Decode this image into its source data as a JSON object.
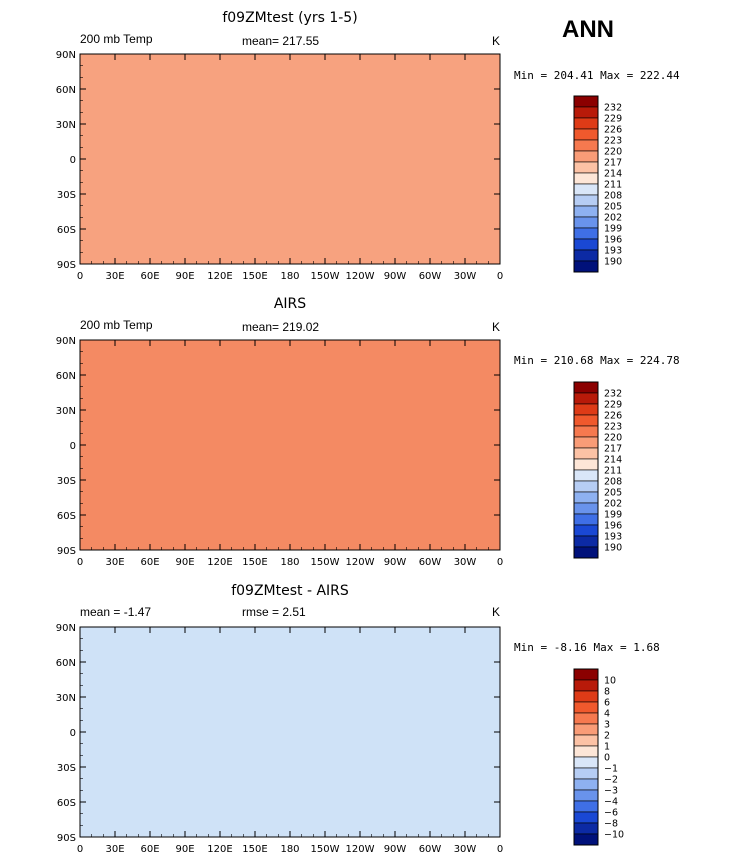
{
  "season": "ANN",
  "chart_data": [
    {
      "type": "heatmap",
      "title": "f09ZMtest (yrs 1-5)",
      "left_label": "200 mb Temp",
      "center_label": "mean= 217.55",
      "units": "K",
      "stats": "Min = 204.41 Max = 222.44",
      "y_ticks": [
        "90N",
        "60N",
        "30N",
        "0",
        "30S",
        "60S",
        "90S"
      ],
      "x_ticks": [
        "0",
        "30E",
        "60E",
        "90E",
        "120E",
        "150E",
        "180",
        "150W",
        "120W",
        "90W",
        "60W",
        "30W",
        "0"
      ],
      "levels": [
        "232",
        "229",
        "226",
        "223",
        "220",
        "217",
        "214",
        "211",
        "208",
        "205",
        "202",
        "199",
        "196",
        "193",
        "190"
      ],
      "fill": "#f7a27f"
    },
    {
      "type": "heatmap",
      "title": "AIRS",
      "left_label": "200 mb Temp",
      "center_label": "mean= 219.02",
      "units": "K",
      "stats": "Min = 210.68 Max = 224.78",
      "y_ticks": [
        "90N",
        "60N",
        "30N",
        "0",
        "30S",
        "60S",
        "90S"
      ],
      "x_ticks": [
        "0",
        "30E",
        "60E",
        "90E",
        "120E",
        "150E",
        "180",
        "150W",
        "120W",
        "90W",
        "60W",
        "30W",
        "0"
      ],
      "levels": [
        "232",
        "229",
        "226",
        "223",
        "220",
        "217",
        "214",
        "211",
        "208",
        "205",
        "202",
        "199",
        "196",
        "193",
        "190"
      ],
      "fill": "#f48a63"
    },
    {
      "type": "heatmap",
      "title": "f09ZMtest - AIRS",
      "left_label": "mean =  -1.47",
      "center_label": "rmse =    2.51",
      "units": "K",
      "stats": "Min =  -8.16 Max =   1.68",
      "y_ticks": [
        "90N",
        "60N",
        "30N",
        "0",
        "30S",
        "60S",
        "90S"
      ],
      "x_ticks": [
        "0",
        "30E",
        "60E",
        "90E",
        "120E",
        "150E",
        "180",
        "150W",
        "120W",
        "90W",
        "60W",
        "30W",
        "0"
      ],
      "levels": [
        "10",
        "8",
        "6",
        "4",
        "3",
        "2",
        "1",
        "0",
        "−1",
        "−2",
        "−3",
        "−4",
        "−6",
        "−8",
        "−10"
      ],
      "fill": "#cfe2f7"
    }
  ],
  "colors": {
    "scale": [
      "#8b0000",
      "#b81a09",
      "#de3b17",
      "#f0592d",
      "#f6794f",
      "#f99c77",
      "#fcc2a5",
      "#fde6d7",
      "#d9e6f8",
      "#b6cdf4",
      "#8eb1f1",
      "#6993ec",
      "#3f6fe6",
      "#1a48d4",
      "#0c2aa4",
      "#00117a"
    ]
  }
}
